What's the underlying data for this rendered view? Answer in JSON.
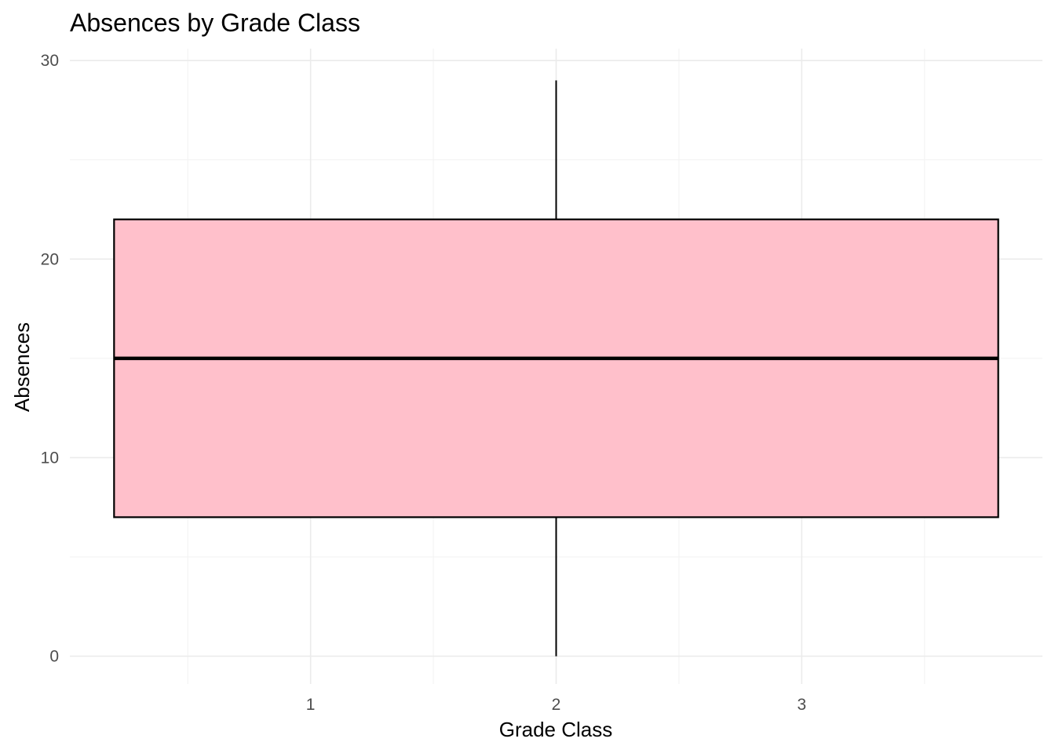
{
  "chart_data": {
    "type": "boxplot",
    "title": "Absences by Grade Class",
    "xlabel": "Grade Class",
    "ylabel": "Absences",
    "x_ticks": [
      1,
      2,
      3
    ],
    "xlim": [
      0.02,
      3.98
    ],
    "y_ticks": [
      0,
      10,
      20,
      30
    ],
    "ylim": [
      -1.4,
      30.6
    ],
    "grid": true,
    "legend": "none",
    "box": {
      "x_center": 2,
      "x_min": 0.2,
      "x_max": 3.8,
      "min": 0,
      "q1": 7,
      "median": 15,
      "q3": 22,
      "max": 29,
      "fill": "#ffc0cb",
      "stroke": "#000000"
    }
  }
}
